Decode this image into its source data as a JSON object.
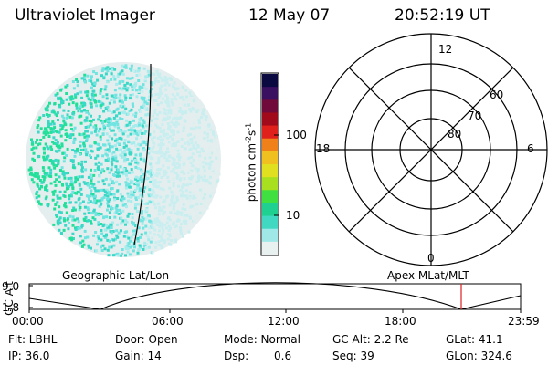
{
  "header": {
    "title": "Ultraviolet Imager",
    "date": "12 May 07",
    "time": "20:52:19 UT"
  },
  "colorbar": {
    "unit_base": "photon cm",
    "unit_exp1": "-2",
    "unit_mid": "s",
    "unit_exp2": "-1",
    "ticks": [
      {
        "label": "100",
        "value": 100
      },
      {
        "label": "10",
        "value": 10
      }
    ],
    "colors_top_to_bottom": [
      "#0a0a40",
      "#3a1060",
      "#700a3a",
      "#a00a1a",
      "#e0201a",
      "#f0801a",
      "#f0c020",
      "#e0e020",
      "#a8e020",
      "#40e040",
      "#20d090",
      "#40d8c0",
      "#a0e8e8",
      "#e8f0f0"
    ]
  },
  "polar_plot": {
    "labels": {
      "top": "12",
      "left": "18",
      "right": "6",
      "bottom": "0",
      "lat60": "60",
      "lat70": "70",
      "lat80": "80"
    }
  },
  "image_panel": {
    "texture_colors": [
      "#22e09a",
      "#3ad8c6",
      "#70e4e0",
      "#a6ecec",
      "#c8eef0",
      "#dfeeee"
    ]
  },
  "timeline": {
    "axis_label": "GC Alt",
    "y_top": "9.0",
    "y_bottom": "1.8",
    "left_caption": "Geographic Lat/Lon",
    "right_caption": "Apex MLat/MLT",
    "ticks": [
      "00:00",
      "06:00",
      "12:00",
      "18:00",
      "23:59"
    ],
    "marker_color": "#e02020"
  },
  "info": {
    "flt": "Flt: LBHL",
    "ip": "IP: 36.0",
    "door": "Door: Open",
    "gain": "Gain: 14",
    "mode": "Mode: Normal",
    "dsp_label": "Dsp:",
    "dsp_value": "0.6",
    "gc_alt": "GC Alt: 2.2 Re",
    "seq": "Seq: 39",
    "glat": "GLat:  41.1",
    "glon": "GLon: 324.6"
  }
}
